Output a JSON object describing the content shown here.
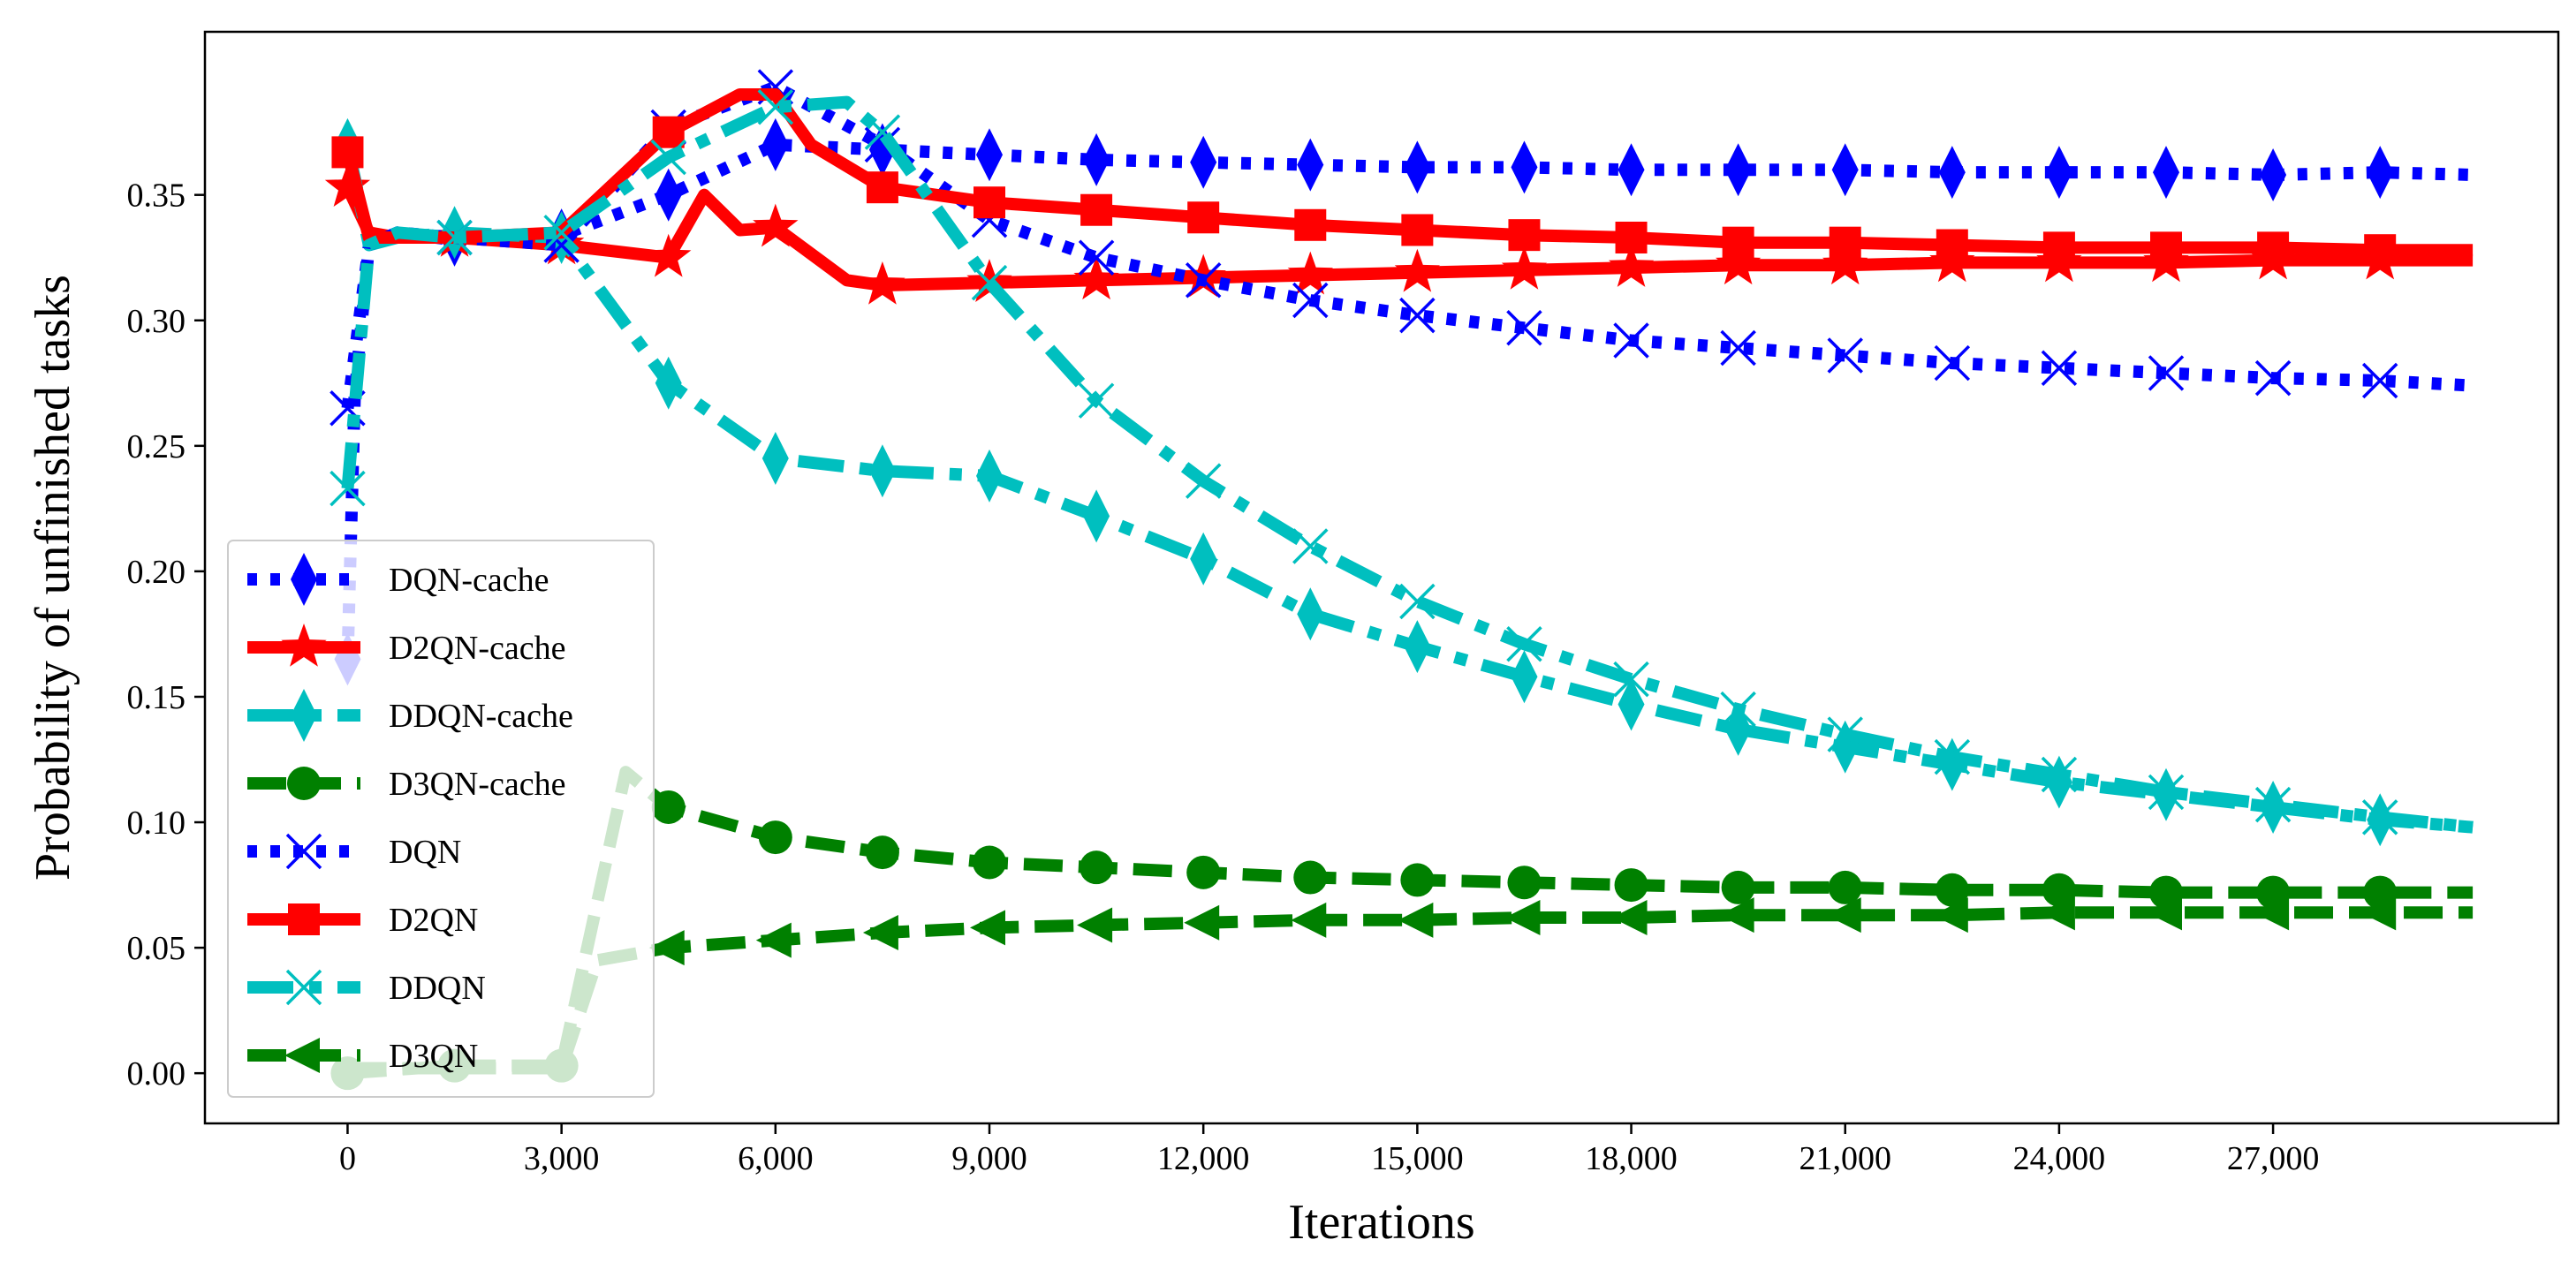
{
  "chart_data": {
    "type": "line",
    "title": "",
    "xlabel": "Iterations",
    "ylabel": "Probability of unfinished tasks",
    "xlim": [
      -2000,
      31000
    ],
    "ylim": [
      -0.02,
      0.415
    ],
    "x_ticks": [
      0,
      3000,
      6000,
      9000,
      12000,
      15000,
      18000,
      21000,
      24000,
      27000
    ],
    "x_tick_labels": [
      "0",
      "3,000",
      "6,000",
      "9,000",
      "12,000",
      "15,000",
      "18,000",
      "21,000",
      "24,000",
      "27,000"
    ],
    "y_ticks": [
      0.0,
      0.05,
      0.1,
      0.15,
      0.2,
      0.25,
      0.3,
      0.35
    ],
    "y_tick_labels": [
      "0.00",
      "0.05",
      "0.10",
      "0.15",
      "0.20",
      "0.25",
      "0.30",
      "0.35"
    ],
    "grid": false,
    "legend_position": "lower-left",
    "series": [
      {
        "name": "DQN-cache",
        "color": "#0000ff",
        "linestyle": "dotted",
        "marker": "thin_diamond",
        "x": [
          0,
          100,
          300,
          700,
          1500,
          3000,
          4500,
          6000,
          7500,
          9000,
          10500,
          12000,
          13500,
          15000,
          16500,
          18000,
          19500,
          21000,
          22500,
          24000,
          25500,
          27000,
          28500,
          29800
        ],
        "y": [
          0.165,
          0.27,
          0.33,
          0.335,
          0.332,
          0.334,
          0.35,
          0.37,
          0.368,
          0.366,
          0.364,
          0.363,
          0.362,
          0.361,
          0.361,
          0.36,
          0.36,
          0.36,
          0.359,
          0.359,
          0.359,
          0.358,
          0.359,
          0.358
        ],
        "marker_x": [
          0,
          1500,
          3000,
          4500,
          6000,
          7500,
          9000,
          10500,
          12000,
          13500,
          15000,
          16500,
          18000,
          19500,
          21000,
          22500,
          24000,
          25500,
          27000,
          28500
        ]
      },
      {
        "name": "D2QN-cache",
        "color": "#ff0000",
        "linestyle": "solid",
        "marker": "star",
        "x": [
          0,
          300,
          700,
          1500,
          3000,
          4500,
          5000,
          5500,
          6000,
          7000,
          7500,
          9000,
          10500,
          12000,
          13500,
          15000,
          16500,
          18000,
          19500,
          21000,
          22500,
          24000,
          25500,
          27000,
          28500,
          29800
        ],
        "y": [
          0.353,
          0.335,
          0.333,
          0.333,
          0.33,
          0.325,
          0.35,
          0.336,
          0.337,
          0.316,
          0.314,
          0.315,
          0.316,
          0.317,
          0.318,
          0.319,
          0.32,
          0.321,
          0.322,
          0.322,
          0.323,
          0.323,
          0.323,
          0.324,
          0.324,
          0.324
        ],
        "marker_x": [
          0,
          1500,
          3000,
          4500,
          6000,
          7500,
          9000,
          10500,
          12000,
          13500,
          15000,
          16500,
          18000,
          19500,
          21000,
          22500,
          24000,
          25500,
          27000,
          28500
        ]
      },
      {
        "name": "DDQN-cache",
        "color": "#00bfbf",
        "linestyle": "dashdot",
        "marker": "thin_diamond",
        "x": [
          0,
          300,
          700,
          1500,
          3000,
          4500,
          6000,
          7500,
          9000,
          10500,
          12000,
          13500,
          15000,
          16500,
          18000,
          19500,
          21000,
          22500,
          24000,
          25500,
          27000,
          28500,
          29800
        ],
        "y": [
          0.37,
          0.33,
          0.333,
          0.335,
          0.333,
          0.275,
          0.245,
          0.24,
          0.238,
          0.222,
          0.205,
          0.183,
          0.17,
          0.158,
          0.147,
          0.137,
          0.13,
          0.123,
          0.116,
          0.111,
          0.106,
          0.101,
          0.098
        ],
        "marker_x": [
          0,
          1500,
          3000,
          4500,
          6000,
          7500,
          9000,
          10500,
          12000,
          13500,
          15000,
          16500,
          18000,
          19500,
          21000,
          22500,
          24000,
          25500,
          27000,
          28500
        ]
      },
      {
        "name": "D3QN-cache",
        "color": "#008000",
        "linestyle": "dashed",
        "marker": "circle",
        "x": [
          0,
          1500,
          3000,
          3900,
          4500,
          6000,
          7500,
          9000,
          10500,
          12000,
          13500,
          15000,
          16500,
          18000,
          19500,
          21000,
          22500,
          24000,
          25500,
          27000,
          28500,
          29800
        ],
        "y": [
          0.0,
          0.003,
          0.003,
          0.12,
          0.106,
          0.094,
          0.088,
          0.084,
          0.082,
          0.08,
          0.078,
          0.077,
          0.076,
          0.075,
          0.074,
          0.074,
          0.073,
          0.073,
          0.072,
          0.072,
          0.072,
          0.072
        ],
        "marker_x": [
          0,
          1500,
          3000,
          4500,
          6000,
          7500,
          9000,
          10500,
          12000,
          13500,
          15000,
          16500,
          18000,
          19500,
          21000,
          22500,
          24000,
          25500,
          27000,
          28500
        ]
      },
      {
        "name": "DQN",
        "color": "#0000ff",
        "linestyle": "dotted",
        "marker": "x",
        "x": [
          0,
          300,
          700,
          1500,
          3000,
          4500,
          6000,
          7500,
          9000,
          10500,
          12000,
          13500,
          15000,
          16500,
          18000,
          19500,
          21000,
          22500,
          24000,
          25500,
          27000,
          28500,
          29800
        ],
        "y": [
          0.265,
          0.33,
          0.335,
          0.333,
          0.33,
          0.377,
          0.393,
          0.37,
          0.34,
          0.325,
          0.316,
          0.308,
          0.302,
          0.297,
          0.292,
          0.289,
          0.286,
          0.283,
          0.281,
          0.279,
          0.277,
          0.276,
          0.274
        ],
        "marker_x": [
          0,
          1500,
          3000,
          4500,
          6000,
          7500,
          9000,
          10500,
          12000,
          13500,
          15000,
          16500,
          18000,
          19500,
          21000,
          22500,
          24000,
          25500,
          27000,
          28500
        ]
      },
      {
        "name": "D2QN",
        "color": "#ff0000",
        "linestyle": "solid",
        "marker": "square",
        "x": [
          0,
          300,
          700,
          1500,
          3000,
          4500,
          5500,
          6000,
          6500,
          7500,
          9000,
          10500,
          12000,
          13500,
          15000,
          16500,
          18000,
          19500,
          21000,
          22500,
          24000,
          25500,
          27000,
          28500,
          29800
        ],
        "y": [
          0.367,
          0.333,
          0.333,
          0.333,
          0.335,
          0.375,
          0.39,
          0.39,
          0.37,
          0.353,
          0.347,
          0.344,
          0.341,
          0.338,
          0.336,
          0.334,
          0.333,
          0.331,
          0.331,
          0.33,
          0.329,
          0.329,
          0.329,
          0.328,
          0.328
        ],
        "marker_x": [
          0,
          4500,
          7500,
          9000,
          10500,
          12000,
          13500,
          15000,
          16500,
          18000,
          19500,
          21000,
          22500,
          24000,
          25500,
          27000,
          28500
        ]
      },
      {
        "name": "DDQN",
        "color": "#00bfbf",
        "linestyle": "dashdot",
        "marker": "x",
        "x": [
          0,
          300,
          700,
          1500,
          3000,
          4500,
          6000,
          7000,
          7500,
          9000,
          10500,
          12000,
          13500,
          15000,
          16500,
          18000,
          19500,
          21000,
          22500,
          24000,
          25500,
          27000,
          28500,
          29800
        ],
        "y": [
          0.233,
          0.33,
          0.335,
          0.333,
          0.335,
          0.365,
          0.385,
          0.387,
          0.375,
          0.315,
          0.268,
          0.236,
          0.21,
          0.188,
          0.171,
          0.157,
          0.145,
          0.135,
          0.126,
          0.119,
          0.112,
          0.107,
          0.102,
          0.098
        ],
        "marker_x": [
          0,
          1500,
          3000,
          4500,
          6000,
          7500,
          9000,
          10500,
          12000,
          13500,
          15000,
          16500,
          18000,
          19500,
          21000,
          22500,
          24000,
          25500,
          27000,
          28500
        ]
      },
      {
        "name": "D3QN",
        "color": "#008000",
        "linestyle": "dashed",
        "marker": "triangle_left",
        "x": [
          0,
          1500,
          3000,
          3500,
          4500,
          6000,
          7500,
          9000,
          10500,
          12000,
          13500,
          15000,
          16500,
          18000,
          19500,
          21000,
          22500,
          24000,
          25500,
          27000,
          28500,
          29800
        ],
        "y": [
          0.002,
          0.002,
          0.002,
          0.045,
          0.05,
          0.053,
          0.056,
          0.058,
          0.059,
          0.06,
          0.061,
          0.061,
          0.062,
          0.062,
          0.063,
          0.063,
          0.063,
          0.064,
          0.064,
          0.064,
          0.064,
          0.064
        ],
        "marker_x": [
          4500,
          6000,
          7500,
          9000,
          10500,
          12000,
          13500,
          15000,
          16500,
          18000,
          19500,
          21000,
          22500,
          24000,
          25500,
          27000,
          28500
        ]
      }
    ]
  }
}
